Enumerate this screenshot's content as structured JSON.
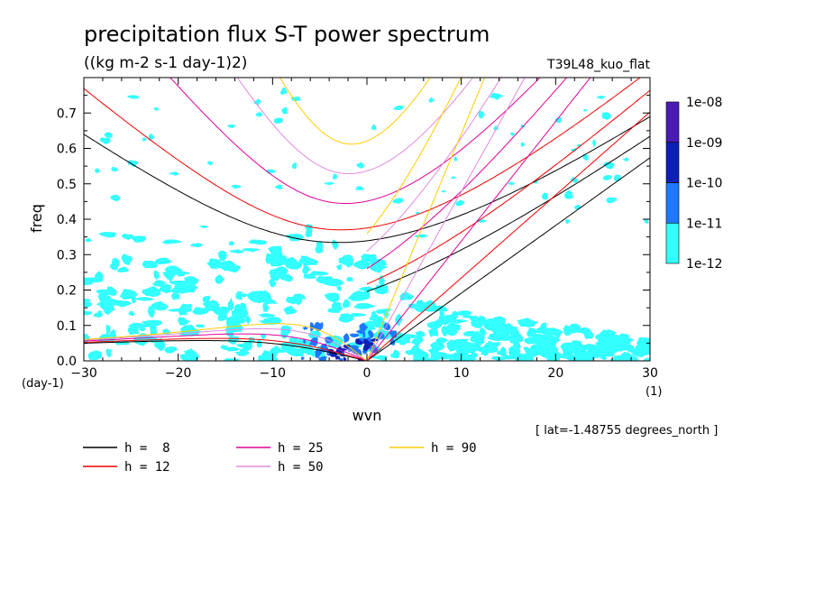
{
  "chart_data": {
    "type": "heatmap",
    "title": "precipitation flux S-T power spectrum",
    "subtitle": "((kg m-2 s-1 day-1)2)",
    "run_label": "T39L48_kuo_flat",
    "xlabel": "wvn",
    "ylabel": "freq",
    "x_unit": "(1)",
    "y_unit": "(day-1)",
    "xlim": [
      -30,
      30
    ],
    "ylim": [
      0,
      0.8
    ],
    "x_ticks": [
      -30,
      -20,
      -10,
      0,
      10,
      20,
      30
    ],
    "x_tick_labels": [
      "−30",
      "−20",
      "−10",
      "0",
      "10",
      "20",
      "30"
    ],
    "y_ticks": [
      0.0,
      0.1,
      0.2,
      0.3,
      0.4,
      0.5,
      0.6,
      0.7
    ],
    "y_tick_labels": [
      "0.0",
      "0.1",
      "0.2",
      "0.3",
      "0.4",
      "0.5",
      "0.6",
      "0.7"
    ],
    "footnote": "[ lat=-1.48755 degrees_north ]",
    "colorbar": {
      "labels": [
        "1e-12",
        "1e-11",
        "1e-10",
        "1e-09",
        "1e-08"
      ],
      "colors": [
        "#33ffff",
        "#1f78ff",
        "#0c20b8",
        "#4a1ab5"
      ]
    },
    "shaded_regions": [
      {
        "level": "1e-12..1e-11",
        "description_points": [
          [
            -28,
            0.33
          ],
          [
            -20,
            0.3
          ],
          [
            -10,
            0.25
          ],
          [
            -2,
            0.15
          ],
          [
            2,
            0.1
          ],
          [
            8,
            0.07
          ],
          [
            15,
            0.06
          ],
          [
            -25,
            0.2
          ],
          [
            -15,
            0.18
          ],
          [
            -5,
            0.2
          ],
          [
            10,
            0.3
          ],
          [
            20,
            0.2
          ],
          [
            28,
            0.1
          ]
        ]
      },
      {
        "level": "1e-11..1e-10",
        "description_points": [
          [
            -6,
            0.05
          ],
          [
            -3,
            0.08
          ],
          [
            0,
            0.03
          ],
          [
            -1,
            0.1
          ],
          [
            2,
            0.02
          ]
        ]
      },
      {
        "level": "1e-10..1e-09",
        "description_points": [
          [
            -3,
            0.04
          ],
          [
            -1,
            0.02
          ],
          [
            0,
            0.01
          ]
        ]
      }
    ],
    "series": [
      {
        "name": "h =  8",
        "color": "#000000",
        "h": 8
      },
      {
        "name": "h = 12",
        "color": "#ee0000",
        "h": 12
      },
      {
        "name": "h = 25",
        "color": "#e0009a",
        "h": 25
      },
      {
        "name": "h = 50",
        "color": "#e08ae0",
        "h": 50
      },
      {
        "name": "h = 90",
        "color": "#ffcc00",
        "h": 90
      }
    ],
    "legend_placement": "bottom"
  }
}
